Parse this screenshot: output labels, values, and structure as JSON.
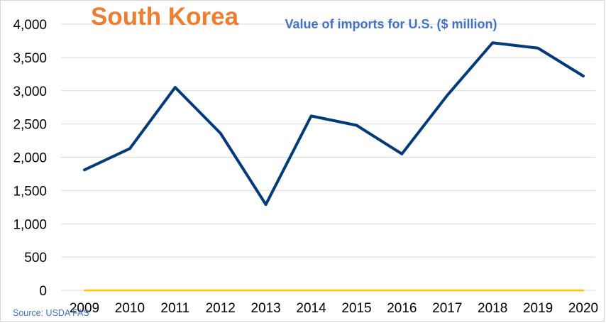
{
  "title": "South Korea",
  "subtitle": "Value of imports for U.S. ($ million)",
  "source": "Source: USDA FAS",
  "colors": {
    "title": "#ED7D31",
    "subtitle": "#4472C4",
    "line": "#003A78",
    "baseline": "#FFC000",
    "grid": "#D9D9D9",
    "source": "#4472C4"
  },
  "chart_data": {
    "type": "line",
    "title": "South Korea",
    "subtitle": "Value of imports for U.S. ($ million)",
    "xlabel": "",
    "ylabel": "",
    "ylim": [
      0,
      4000
    ],
    "y_ticks": [
      "0",
      "500",
      "1,000",
      "1,500",
      "2,000",
      "2,500",
      "3,000",
      "3,500",
      "4,000"
    ],
    "y_tick_values": [
      0,
      500,
      1000,
      1500,
      2000,
      2500,
      3000,
      3500,
      4000
    ],
    "categories": [
      "2009",
      "2010",
      "2011",
      "2012",
      "2013",
      "2014",
      "2015",
      "2016",
      "2017",
      "2018",
      "2019",
      "2020"
    ],
    "series": [
      {
        "values": [
          1810,
          2130,
          3050,
          2360,
          1290,
          2620,
          2480,
          2050,
          2930,
          3720,
          3640,
          3220
        ]
      },
      {
        "values": [
          0,
          0,
          0,
          0,
          0,
          0,
          0,
          0,
          0,
          0,
          0,
          0
        ]
      }
    ],
    "grid": true,
    "legend": "none"
  }
}
